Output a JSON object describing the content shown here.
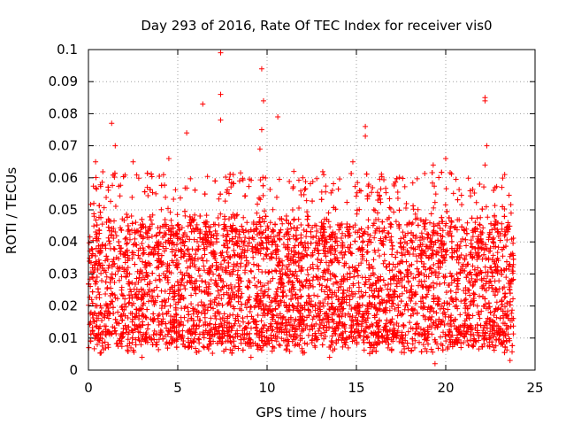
{
  "chart_data": {
    "type": "scatter",
    "title": "Day 293 of 2016, Rate Of TEC Index for receiver vis0",
    "xlabel": "GPS time / hours",
    "ylabel": "ROTI / TECUs",
    "xlim": [
      0,
      25
    ],
    "ylim": [
      0,
      0.1
    ],
    "xticks": [
      0,
      5,
      10,
      15,
      20,
      25
    ],
    "xtick_labels": [
      "0",
      "5",
      "10",
      "15",
      "20",
      "25"
    ],
    "yticks": [
      0,
      0.01,
      0.02,
      0.03,
      0.04,
      0.05,
      0.06,
      0.07,
      0.08,
      0.09,
      0.1
    ],
    "ytick_labels": [
      "0",
      "0.01",
      "0.02",
      "0.03",
      "0.04",
      "0.05",
      "0.06",
      "0.07",
      "0.08",
      "0.09",
      "0.1"
    ],
    "grid": true,
    "marker": "+",
    "color": "#ff0000",
    "data_x_range": [
      0,
      23.8
    ],
    "typical_band": [
      0.005,
      0.05
    ],
    "notable_points": [
      {
        "x": 7.4,
        "y": 0.099
      },
      {
        "x": 9.7,
        "y": 0.094
      },
      {
        "x": 7.4,
        "y": 0.086
      },
      {
        "x": 9.8,
        "y": 0.084
      },
      {
        "x": 22.2,
        "y": 0.085
      },
      {
        "x": 22.2,
        "y": 0.084
      },
      {
        "x": 6.4,
        "y": 0.083
      },
      {
        "x": 10.6,
        "y": 0.079
      },
      {
        "x": 7.4,
        "y": 0.078
      },
      {
        "x": 1.3,
        "y": 0.077
      },
      {
        "x": 15.5,
        "y": 0.076
      },
      {
        "x": 9.7,
        "y": 0.075
      },
      {
        "x": 5.5,
        "y": 0.074
      },
      {
        "x": 15.5,
        "y": 0.073
      },
      {
        "x": 1.5,
        "y": 0.07
      },
      {
        "x": 22.3,
        "y": 0.07
      },
      {
        "x": 9.6,
        "y": 0.069
      },
      {
        "x": 20.0,
        "y": 0.066
      },
      {
        "x": 0.4,
        "y": 0.065
      },
      {
        "x": 14.8,
        "y": 0.065
      },
      {
        "x": 2.5,
        "y": 0.065
      },
      {
        "x": 4.5,
        "y": 0.066
      },
      {
        "x": 22.2,
        "y": 0.064
      },
      {
        "x": 19.3,
        "y": 0.064
      },
      {
        "x": 23.3,
        "y": 0.061
      },
      {
        "x": 17.1,
        "y": 0.058
      },
      {
        "x": 0.3,
        "y": 0.052
      },
      {
        "x": 12.0,
        "y": 0.06
      },
      {
        "x": 3.0,
        "y": 0.004
      },
      {
        "x": 19.4,
        "y": 0.002
      },
      {
        "x": 13.5,
        "y": 0.004
      },
      {
        "x": 9.1,
        "y": 0.004
      },
      {
        "x": 23.6,
        "y": 0.003
      }
    ]
  }
}
